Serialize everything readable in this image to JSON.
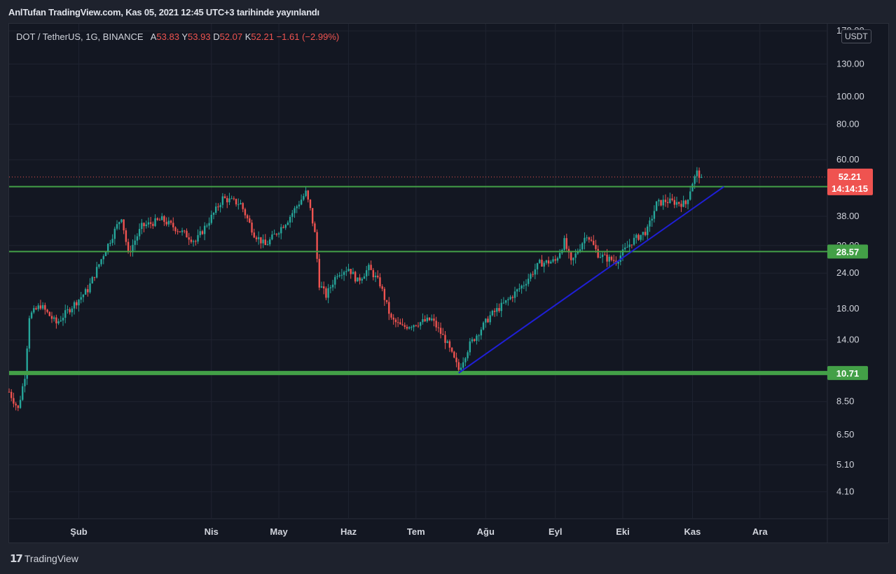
{
  "caption": "AnlTufan TradingView.com, Kas 05, 2021 12:45 UTC+3 tarihinde yayınlandı",
  "legend": {
    "symbol": "DOT / TetherUS, 1G, BINANCE",
    "a_label": "A",
    "a_value": "53.83",
    "y_label": "Y",
    "y_value": "53.93",
    "d_label": "D",
    "d_value": "52.07",
    "k_label": "K",
    "k_value": "52.21",
    "change": "−1.61 (−2.99%)"
  },
  "currency": "USDT",
  "footer": {
    "brand": "TradingView",
    "icon": "tradingview-logo-icon"
  },
  "colors": {
    "up": "#26a69a",
    "down": "#ef5350",
    "support": "#43a047",
    "trendline": "#1f1fd6",
    "price_tag": "#ef5350",
    "grid": "#1f2330"
  },
  "chart_data": {
    "type": "candlestick",
    "scale": "log",
    "ylim": [
      3.3,
      180
    ],
    "y_ticks": [
      "170.00",
      "130.00",
      "100.00",
      "80.00",
      "60.00",
      "38.00",
      "30.00",
      "24.00",
      "18.00",
      "14.00",
      "8.50",
      "6.50",
      "5.10",
      "4.10"
    ],
    "x_ticks": [
      "Şub",
      "Nis",
      "May",
      "Haz",
      "Tem",
      "Ağu",
      "Eyl",
      "Eki",
      "Kas",
      "Ara"
    ],
    "x_range": [
      "2021-01-01",
      "2021-12-31"
    ],
    "last_price": "52.21",
    "countdown": "14:14:15",
    "horizontal_levels": [
      {
        "value": 48.28,
        "label": "48.28",
        "weight": "thin"
      },
      {
        "value": 28.57,
        "label": "28.57",
        "weight": "thin"
      },
      {
        "value": 10.71,
        "label": "10.71",
        "weight": "thick"
      }
    ],
    "trendline": {
      "from": {
        "date": "2021-07-20",
        "value": 10.71
      },
      "to": {
        "date": "2021-11-15",
        "value": 48.28
      }
    },
    "price_path": [
      [
        "2021-01-01",
        9.2
      ],
      [
        "2021-01-05",
        8.0
      ],
      [
        "2021-01-08",
        10.5
      ],
      [
        "2021-01-10",
        17.0
      ],
      [
        "2021-01-15",
        18.5
      ],
      [
        "2021-01-22",
        16.0
      ],
      [
        "2021-01-28",
        18.0
      ],
      [
        "2021-02-05",
        21.0
      ],
      [
        "2021-02-12",
        28.0
      ],
      [
        "2021-02-20",
        38.0
      ],
      [
        "2021-02-23",
        28.0
      ],
      [
        "2021-03-01",
        35.0
      ],
      [
        "2021-03-10",
        37.0
      ],
      [
        "2021-03-20",
        33.0
      ],
      [
        "2021-03-25",
        31.0
      ],
      [
        "2021-04-03",
        40.0
      ],
      [
        "2021-04-06",
        44.0
      ],
      [
        "2021-04-14",
        42.0
      ],
      [
        "2021-04-20",
        33.0
      ],
      [
        "2021-04-25",
        30.0
      ],
      [
        "2021-05-05",
        37.0
      ],
      [
        "2021-05-13",
        46.0
      ],
      [
        "2021-05-15",
        40.0
      ],
      [
        "2021-05-17",
        33.0
      ],
      [
        "2021-05-19",
        22.0
      ],
      [
        "2021-05-22",
        20.0
      ],
      [
        "2021-05-27",
        24.0
      ],
      [
        "2021-06-01",
        25.0
      ],
      [
        "2021-06-05",
        22.5
      ],
      [
        "2021-06-10",
        25.0
      ],
      [
        "2021-06-15",
        22.0
      ],
      [
        "2021-06-20",
        16.5
      ],
      [
        "2021-06-25",
        15.5
      ],
      [
        "2021-07-01",
        16.0
      ],
      [
        "2021-07-08",
        16.5
      ],
      [
        "2021-07-14",
        14.0
      ],
      [
        "2021-07-20",
        11.0
      ],
      [
        "2021-07-25",
        13.5
      ],
      [
        "2021-08-03",
        17.0
      ],
      [
        "2021-08-10",
        19.0
      ],
      [
        "2021-08-18",
        22.0
      ],
      [
        "2021-08-25",
        26.0
      ],
      [
        "2021-09-01",
        26.5
      ],
      [
        "2021-09-05",
        31.0
      ],
      [
        "2021-09-08",
        26.0
      ],
      [
        "2021-09-15",
        33.0
      ],
      [
        "2021-09-20",
        28.0
      ],
      [
        "2021-09-24",
        27.0
      ],
      [
        "2021-09-28",
        26.5
      ],
      [
        "2021-10-05",
        31.0
      ],
      [
        "2021-10-12",
        34.0
      ],
      [
        "2021-10-16",
        42.0
      ],
      [
        "2021-10-20",
        43.0
      ],
      [
        "2021-10-25",
        42.5
      ],
      [
        "2021-10-29",
        42.0
      ],
      [
        "2021-11-01",
        50.0
      ],
      [
        "2021-11-03",
        54.0
      ],
      [
        "2021-11-05",
        52.21
      ]
    ]
  }
}
